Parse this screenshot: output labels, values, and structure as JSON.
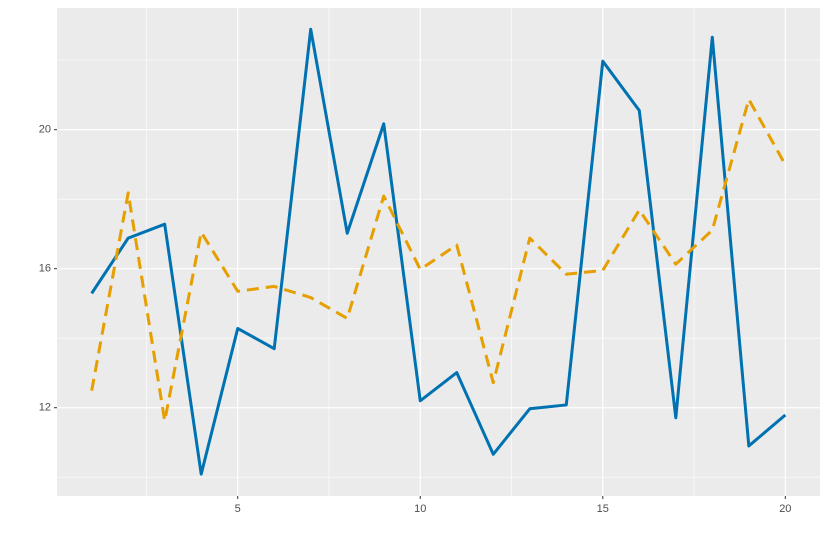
{
  "chart_data": {
    "type": "line",
    "x": [
      1,
      2,
      3,
      4,
      5,
      6,
      7,
      8,
      9,
      10,
      11,
      12,
      13,
      14,
      15,
      16,
      17,
      18,
      19,
      20
    ],
    "series": [
      {
        "color": "#0072b2",
        "linestyle": "solid",
        "values": [
          15.29,
          16.88,
          17.28,
          10.09,
          14.28,
          13.7,
          22.89,
          17.02,
          20.17,
          12.2,
          13.01,
          10.66,
          11.97,
          12.08,
          21.97,
          20.55,
          11.71,
          22.66,
          10.9,
          11.79
        ]
      },
      {
        "color": "#e69f00",
        "linestyle": "dashed",
        "values": [
          12.49,
          18.18,
          11.62,
          17.05,
          15.35,
          15.49,
          15.17,
          14.57,
          18.09,
          15.98,
          16.68,
          12.72,
          16.88,
          15.84,
          15.95,
          17.69,
          16.13,
          17.11,
          20.87,
          18.99
        ]
      }
    ],
    "xlim": [
      0.05,
      20.95
    ],
    "xticks": [
      5,
      10,
      15,
      20
    ],
    "ylim": [
      9.46,
      23.5
    ],
    "yticks": [
      12,
      16,
      20
    ],
    "grid": true
  }
}
